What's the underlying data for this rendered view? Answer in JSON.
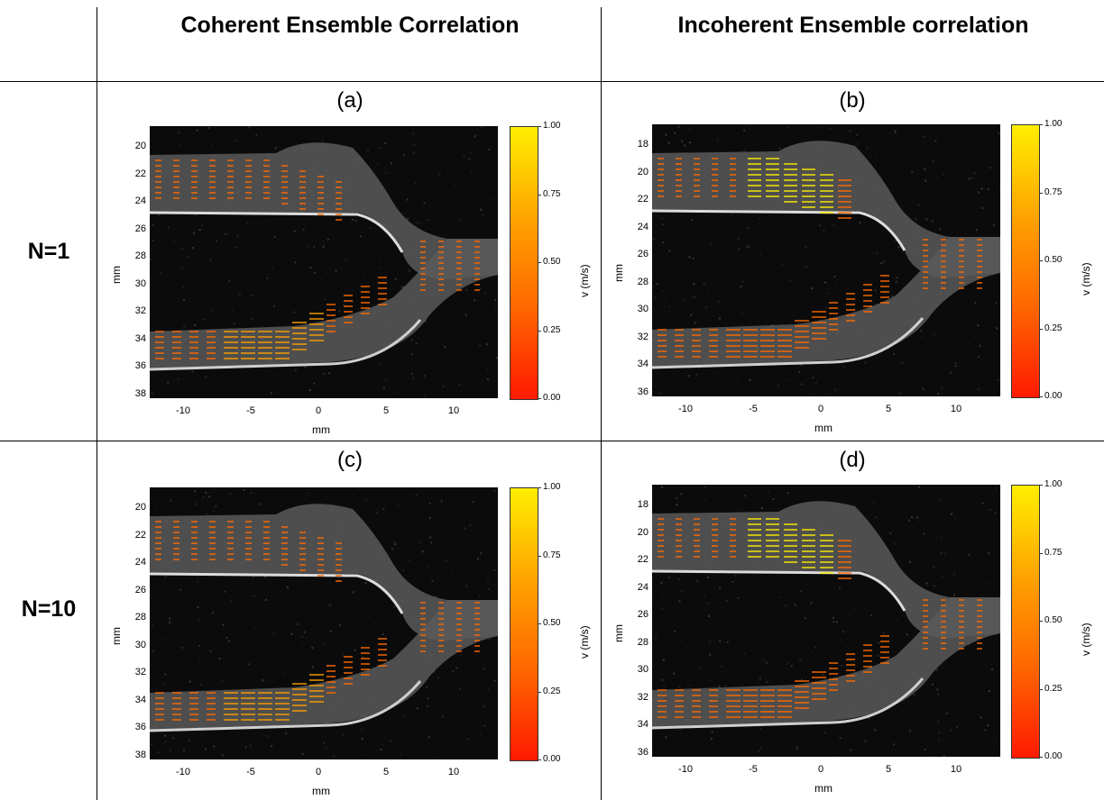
{
  "columns": {
    "coherent": "Coherent Ensemble Correlation",
    "incoherent": "Incoherent Ensemble correlation"
  },
  "rows": {
    "n1": "N=1",
    "n10": "N=10"
  },
  "panels": [
    {
      "label": "(a)",
      "yticks": [
        "20",
        "22",
        "24",
        "26",
        "28",
        "30",
        "32",
        "34",
        "36",
        "38"
      ]
    },
    {
      "label": "(b)",
      "yticks": [
        "18",
        "20",
        "22",
        "24",
        "26",
        "28",
        "30",
        "32",
        "34",
        "36"
      ]
    },
    {
      "label": "(c)",
      "yticks": [
        "20",
        "22",
        "24",
        "26",
        "28",
        "30",
        "32",
        "34",
        "36",
        "38"
      ]
    },
    {
      "label": "(d)",
      "yticks": [
        "18",
        "20",
        "22",
        "24",
        "26",
        "28",
        "30",
        "32",
        "34",
        "36"
      ]
    }
  ],
  "axes": {
    "xlabel": "mm",
    "ylabel": "mm",
    "xticks": [
      "-10",
      "-5",
      "0",
      "5",
      "10"
    ]
  },
  "colorbar": {
    "label": "v (m/s)",
    "ticks": [
      "1.00",
      "0.75",
      "0.50",
      "0.25",
      "0.00"
    ],
    "colors": [
      "#ff1a00",
      "#ff6a00",
      "#ffa000",
      "#ffef00"
    ]
  }
}
